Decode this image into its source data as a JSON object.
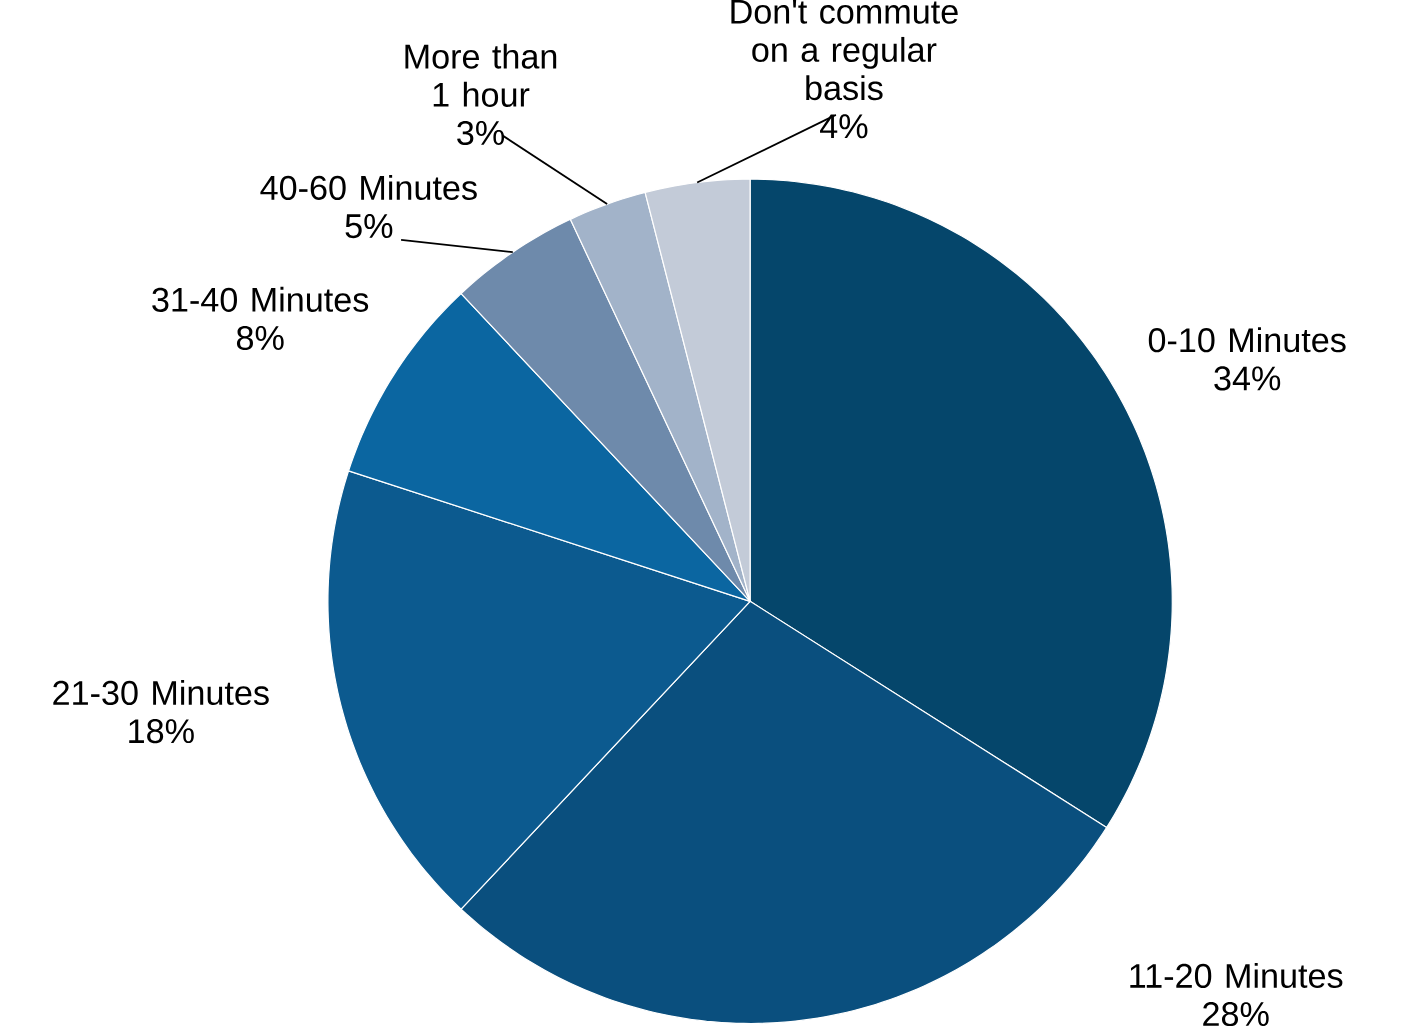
{
  "chart_data": {
    "type": "pie",
    "categories": [
      "0-10 Minutes",
      "11-20 Minutes",
      "21-30 Minutes",
      "31-40 Minutes",
      "40-60 Minutes",
      "More than 1 hour",
      "Don't commute on a regular basis"
    ],
    "values": [
      34,
      28,
      18,
      8,
      5,
      3,
      4
    ],
    "colors": [
      "#05466b",
      "#0a4f7e",
      "#0c5a8f",
      "#0b66a1",
      "#6e8aab",
      "#a2b3c9",
      "#c3cbd8"
    ],
    "value_labels": [
      "34%",
      "28%",
      "18%",
      "8%",
      "5%",
      "3%",
      "4%"
    ]
  }
}
